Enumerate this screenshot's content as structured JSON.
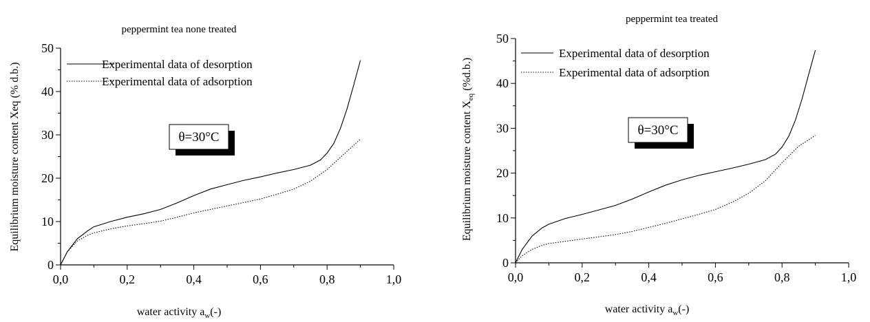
{
  "chart_data": [
    {
      "type": "line",
      "title": "peppermint tea none treated",
      "xlabel": "water activity a",
      "xlabel_sub": "w",
      "xlabel_tail": "(-)",
      "ylabel": "Equilibrium moisture content Xeq  (% d.b.)",
      "xlim": [
        0,
        1.0
      ],
      "ylim": [
        0,
        50
      ],
      "x_ticks": [
        "0,0",
        "0,2",
        "0,4",
        "0,6",
        "0,8",
        "1,0"
      ],
      "y_ticks": [
        "0",
        "10",
        "20",
        "30",
        "40",
        "50"
      ],
      "annotation": "θ=30°C",
      "legend_position": "top-left",
      "grid": false,
      "series": [
        {
          "name": "Experimental data of desorption",
          "style": "solid",
          "x": [
            0,
            0.02,
            0.05,
            0.08,
            0.1,
            0.15,
            0.2,
            0.25,
            0.3,
            0.35,
            0.4,
            0.45,
            0.5,
            0.55,
            0.6,
            0.65,
            0.7,
            0.75,
            0.78,
            0.8,
            0.82,
            0.84,
            0.86,
            0.88,
            0.9
          ],
          "y": [
            0,
            3.0,
            6.0,
            7.8,
            8.8,
            10.0,
            11.0,
            11.8,
            12.8,
            14.3,
            16.0,
            17.5,
            18.5,
            19.5,
            20.3,
            21.2,
            22.0,
            23.0,
            24.2,
            25.8,
            28.0,
            31.5,
            36.0,
            41.5,
            47.2
          ]
        },
        {
          "name": "Experimental data of adsorption",
          "style": "dotted",
          "x": [
            0,
            0.02,
            0.05,
            0.08,
            0.1,
            0.15,
            0.2,
            0.25,
            0.3,
            0.35,
            0.4,
            0.45,
            0.5,
            0.55,
            0.6,
            0.65,
            0.7,
            0.75,
            0.8,
            0.85,
            0.9
          ],
          "y": [
            0,
            3.0,
            5.5,
            6.8,
            7.4,
            8.3,
            9.0,
            9.5,
            10.1,
            11.0,
            12.0,
            12.8,
            13.6,
            14.4,
            15.2,
            16.3,
            17.5,
            19.3,
            22.0,
            25.5,
            29.0
          ]
        }
      ]
    },
    {
      "type": "line",
      "title": "peppermint tea treated",
      "xlabel": "water activity a",
      "xlabel_sub": "w",
      "xlabel_tail": "(-)",
      "ylabel": "Equilibrium moisture content X",
      "ylabel_sub": "eq",
      "ylabel_tail": " (%d.b.)",
      "xlim": [
        0,
        1.0
      ],
      "ylim": [
        0,
        50
      ],
      "x_ticks": [
        "0,0",
        "0,2",
        "0,4",
        "0,6",
        "0,8",
        "1,0"
      ],
      "y_ticks": [
        "0",
        "10",
        "20",
        "30",
        "40",
        "50"
      ],
      "annotation": "θ=30°C",
      "legend_position": "top-left",
      "grid": false,
      "series": [
        {
          "name": "Experimental data of desorption",
          "style": "solid",
          "x": [
            0,
            0.02,
            0.05,
            0.08,
            0.1,
            0.15,
            0.2,
            0.25,
            0.3,
            0.35,
            0.4,
            0.45,
            0.5,
            0.55,
            0.6,
            0.65,
            0.7,
            0.75,
            0.78,
            0.8,
            0.82,
            0.84,
            0.86,
            0.88,
            0.9
          ],
          "y": [
            0,
            3.0,
            6.0,
            7.8,
            8.6,
            9.9,
            10.8,
            11.8,
            12.8,
            14.2,
            15.8,
            17.3,
            18.5,
            19.5,
            20.3,
            21.1,
            22.0,
            23.0,
            24.2,
            25.8,
            28.2,
            31.8,
            36.5,
            42.0,
            47.4
          ]
        },
        {
          "name": "Experimental data of adsorption",
          "style": "dotted",
          "x": [
            0,
            0.02,
            0.05,
            0.08,
            0.1,
            0.15,
            0.2,
            0.25,
            0.3,
            0.35,
            0.4,
            0.45,
            0.5,
            0.55,
            0.6,
            0.65,
            0.7,
            0.75,
            0.8,
            0.85,
            0.9
          ],
          "y": [
            0,
            1.6,
            3.0,
            3.9,
            4.3,
            4.8,
            5.3,
            5.8,
            6.3,
            7.0,
            7.9,
            8.8,
            9.8,
            10.8,
            11.9,
            13.5,
            15.5,
            18.3,
            22.3,
            26.0,
            28.4
          ]
        }
      ]
    }
  ]
}
